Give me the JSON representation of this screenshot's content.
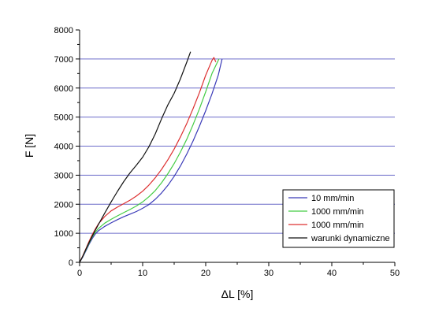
{
  "chart_data": {
    "type": "line",
    "title": "",
    "xlabel": "ΔL [%]",
    "ylabel": "F [N]",
    "xlim": [
      0,
      50
    ],
    "ylim": [
      0,
      8000
    ],
    "xticks": [
      0,
      10,
      20,
      30,
      40,
      50
    ],
    "yticks": [
      0,
      1000,
      2000,
      3000,
      4000,
      5000,
      6000,
      7000,
      8000
    ],
    "grid": "horizontal",
    "grid_color": "#6b6bc9",
    "legend_position": "bottom-right",
    "series": [
      {
        "name": "10 mm/min",
        "color": "#3a3ab8",
        "x": [
          0,
          0.5,
          1,
          1.5,
          2,
          2.5,
          3,
          4,
          5,
          6,
          7,
          8,
          9,
          10,
          11,
          12,
          13,
          14,
          15,
          16,
          17,
          18,
          19,
          20,
          21,
          22,
          22.6
        ],
        "y": [
          0,
          180,
          400,
          620,
          820,
          980,
          1090,
          1240,
          1360,
          1470,
          1570,
          1660,
          1750,
          1860,
          1990,
          2170,
          2390,
          2650,
          2960,
          3320,
          3730,
          4180,
          4680,
          5220,
          5800,
          6450,
          7000
        ]
      },
      {
        "name": "1000 mm/min",
        "color": "#44cc44",
        "x": [
          0,
          0.5,
          1,
          1.5,
          2,
          2.5,
          3,
          4,
          5,
          6,
          7,
          8,
          9,
          10,
          11,
          12,
          13,
          14,
          15,
          16,
          17,
          18,
          19,
          20,
          21,
          22.1
        ],
        "y": [
          0,
          200,
          430,
          660,
          870,
          1040,
          1170,
          1350,
          1480,
          1600,
          1710,
          1820,
          1940,
          2080,
          2260,
          2470,
          2740,
          3050,
          3400,
          3800,
          4240,
          4740,
          5280,
          5870,
          6500,
          7000
        ]
      },
      {
        "name": "1000 mm/min",
        "color": "#dd3030",
        "x": [
          0,
          0.5,
          1,
          1.5,
          2,
          2.5,
          3,
          4,
          5,
          6,
          7,
          8,
          9,
          10,
          11,
          12,
          13,
          14,
          15,
          16,
          17,
          18,
          19,
          20,
          21,
          21.3,
          21.6
        ],
        "y": [
          0,
          220,
          470,
          720,
          950,
          1150,
          1330,
          1580,
          1770,
          1900,
          2020,
          2140,
          2280,
          2450,
          2660,
          2910,
          3200,
          3530,
          3900,
          4320,
          4780,
          5290,
          5840,
          6440,
          6950,
          7050,
          6900
        ]
      },
      {
        "name": "warunki dynamiczne",
        "color": "#111111",
        "x": [
          0,
          0.5,
          1,
          1.5,
          2,
          2.5,
          3,
          4,
          5,
          6,
          7,
          8,
          9,
          10,
          11,
          12,
          13,
          14,
          15,
          16,
          17,
          17.6
        ],
        "y": [
          0,
          210,
          450,
          680,
          900,
          1110,
          1310,
          1700,
          2080,
          2440,
          2780,
          3080,
          3340,
          3620,
          3980,
          4420,
          4940,
          5420,
          5820,
          6320,
          6890,
          7250
        ]
      }
    ]
  }
}
